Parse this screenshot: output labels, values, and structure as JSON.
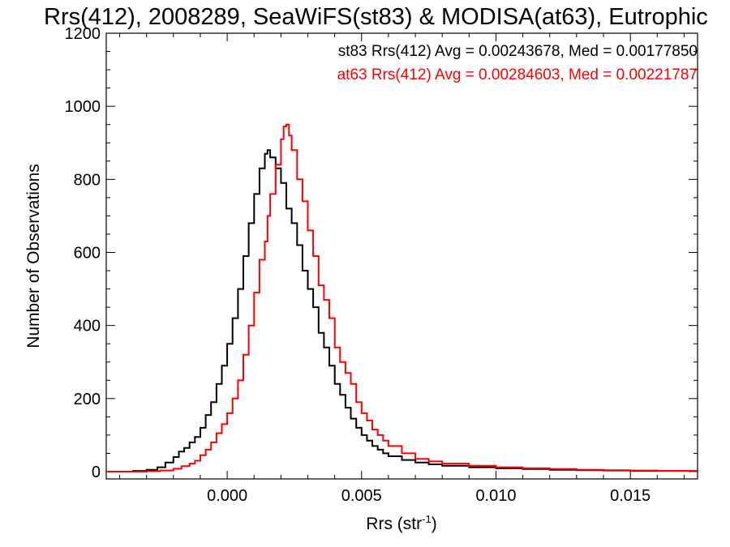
{
  "chart_data": {
    "type": "histogram",
    "title": "Rrs(412), 2008289, SeaWiFS(st83) & MODISA(at63), Eutrophic",
    "xlabel": "Rrs (str",
    "xlabel_sup": "-1",
    "xlabel_close": ")",
    "ylabel": "Number of Observations",
    "xlim": [
      -0.0045,
      0.0175
    ],
    "ylim": [
      -20,
      1200
    ],
    "x_ticks": [
      0.0,
      0.005,
      0.01,
      0.015
    ],
    "x_tick_labels": [
      "0.000",
      "0.005",
      "0.010",
      "0.015"
    ],
    "y_ticks": [
      0,
      200,
      400,
      600,
      800,
      1000,
      1200
    ],
    "y_tick_labels": [
      "0",
      "200",
      "400",
      "600",
      "800",
      "1000",
      "1200"
    ],
    "grid": false,
    "legend_position": "top-right",
    "series": [
      {
        "name": "st83",
        "legend_text": "st83 Rrs(412) Avg = 0.00243678, Med = 0.00177850",
        "color": "#000000",
        "points": [
          [
            -0.0045,
            0
          ],
          [
            -0.0035,
            2
          ],
          [
            -0.003,
            5
          ],
          [
            -0.0026,
            12
          ],
          [
            -0.0023,
            25
          ],
          [
            -0.002,
            40
          ],
          [
            -0.0018,
            55
          ],
          [
            -0.0016,
            65
          ],
          [
            -0.0014,
            80
          ],
          [
            -0.0012,
            95
          ],
          [
            -0.001,
            120
          ],
          [
            -0.0008,
            155
          ],
          [
            -0.0006,
            190
          ],
          [
            -0.0004,
            240
          ],
          [
            -0.0002,
            290
          ],
          [
            0.0,
            350
          ],
          [
            0.0002,
            420
          ],
          [
            0.0004,
            500
          ],
          [
            0.0006,
            590
          ],
          [
            0.0008,
            680
          ],
          [
            0.001,
            760
          ],
          [
            0.0012,
            830
          ],
          [
            0.0014,
            870
          ],
          [
            0.0015,
            880
          ],
          [
            0.0016,
            860
          ],
          [
            0.0018,
            830
          ],
          [
            0.002,
            790
          ],
          [
            0.0022,
            720
          ],
          [
            0.0024,
            680
          ],
          [
            0.0026,
            620
          ],
          [
            0.0028,
            550
          ],
          [
            0.003,
            500
          ],
          [
            0.0032,
            450
          ],
          [
            0.0034,
            380
          ],
          [
            0.0036,
            340
          ],
          [
            0.0038,
            290
          ],
          [
            0.004,
            240
          ],
          [
            0.0042,
            210
          ],
          [
            0.0044,
            175
          ],
          [
            0.0046,
            145
          ],
          [
            0.0048,
            120
          ],
          [
            0.005,
            100
          ],
          [
            0.0052,
            85
          ],
          [
            0.0054,
            70
          ],
          [
            0.0056,
            60
          ],
          [
            0.0058,
            50
          ],
          [
            0.006,
            42
          ],
          [
            0.0065,
            32
          ],
          [
            0.007,
            25
          ],
          [
            0.0075,
            20
          ],
          [
            0.008,
            16
          ],
          [
            0.009,
            12
          ],
          [
            0.01,
            9
          ],
          [
            0.011,
            7
          ],
          [
            0.012,
            5
          ],
          [
            0.013,
            4
          ],
          [
            0.014,
            3
          ],
          [
            0.015,
            2
          ],
          [
            0.016,
            2
          ],
          [
            0.0175,
            1
          ]
        ]
      },
      {
        "name": "at63",
        "legend_text": "at63 Rrs(412) Avg = 0.00284603, Med = 0.00221787",
        "color": "#ff0000",
        "points": [
          [
            -0.0045,
            0
          ],
          [
            -0.003,
            1
          ],
          [
            -0.0025,
            3
          ],
          [
            -0.002,
            8
          ],
          [
            -0.0017,
            15
          ],
          [
            -0.0014,
            22
          ],
          [
            -0.0012,
            30
          ],
          [
            -0.001,
            45
          ],
          [
            -0.0008,
            60
          ],
          [
            -0.0006,
            80
          ],
          [
            -0.0004,
            105
          ],
          [
            -0.0002,
            130
          ],
          [
            0.0,
            160
          ],
          [
            0.0002,
            200
          ],
          [
            0.0004,
            250
          ],
          [
            0.0006,
            320
          ],
          [
            0.0008,
            400
          ],
          [
            0.001,
            490
          ],
          [
            0.0012,
            580
          ],
          [
            0.0014,
            630
          ],
          [
            0.0015,
            700
          ],
          [
            0.0016,
            760
          ],
          [
            0.0018,
            840
          ],
          [
            0.002,
            910
          ],
          [
            0.0021,
            945
          ],
          [
            0.0022,
            950
          ],
          [
            0.0023,
            920
          ],
          [
            0.0024,
            880
          ],
          [
            0.0026,
            800
          ],
          [
            0.0028,
            740
          ],
          [
            0.003,
            660
          ],
          [
            0.0032,
            590
          ],
          [
            0.0034,
            510
          ],
          [
            0.0036,
            470
          ],
          [
            0.0038,
            420
          ],
          [
            0.004,
            340
          ],
          [
            0.0042,
            300
          ],
          [
            0.0044,
            270
          ],
          [
            0.0046,
            240
          ],
          [
            0.0048,
            190
          ],
          [
            0.005,
            160
          ],
          [
            0.0052,
            140
          ],
          [
            0.0054,
            115
          ],
          [
            0.0056,
            100
          ],
          [
            0.0058,
            85
          ],
          [
            0.006,
            70
          ],
          [
            0.0065,
            50
          ],
          [
            0.007,
            35
          ],
          [
            0.0075,
            28
          ],
          [
            0.008,
            22
          ],
          [
            0.009,
            16
          ],
          [
            0.01,
            12
          ],
          [
            0.011,
            9
          ],
          [
            0.012,
            7
          ],
          [
            0.013,
            5
          ],
          [
            0.014,
            4
          ],
          [
            0.015,
            3
          ],
          [
            0.016,
            2
          ],
          [
            0.0175,
            1
          ]
        ]
      }
    ]
  }
}
